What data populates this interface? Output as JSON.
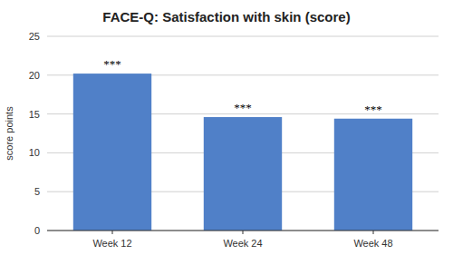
{
  "chart_data": {
    "type": "bar",
    "title": "FACE-Q: Satisfaction with skin (score)",
    "categories": [
      "Week 12",
      "Week 24",
      "Week 48"
    ],
    "values": [
      20.2,
      14.6,
      14.4
    ],
    "color": "#5080C8",
    "ylabel": "score points",
    "annotations": [
      "***",
      "***",
      "***"
    ],
    "ylim": [
      0,
      25
    ],
    "yticks": [
      0,
      5,
      10,
      15,
      20,
      25
    ],
    "grid": true
  }
}
